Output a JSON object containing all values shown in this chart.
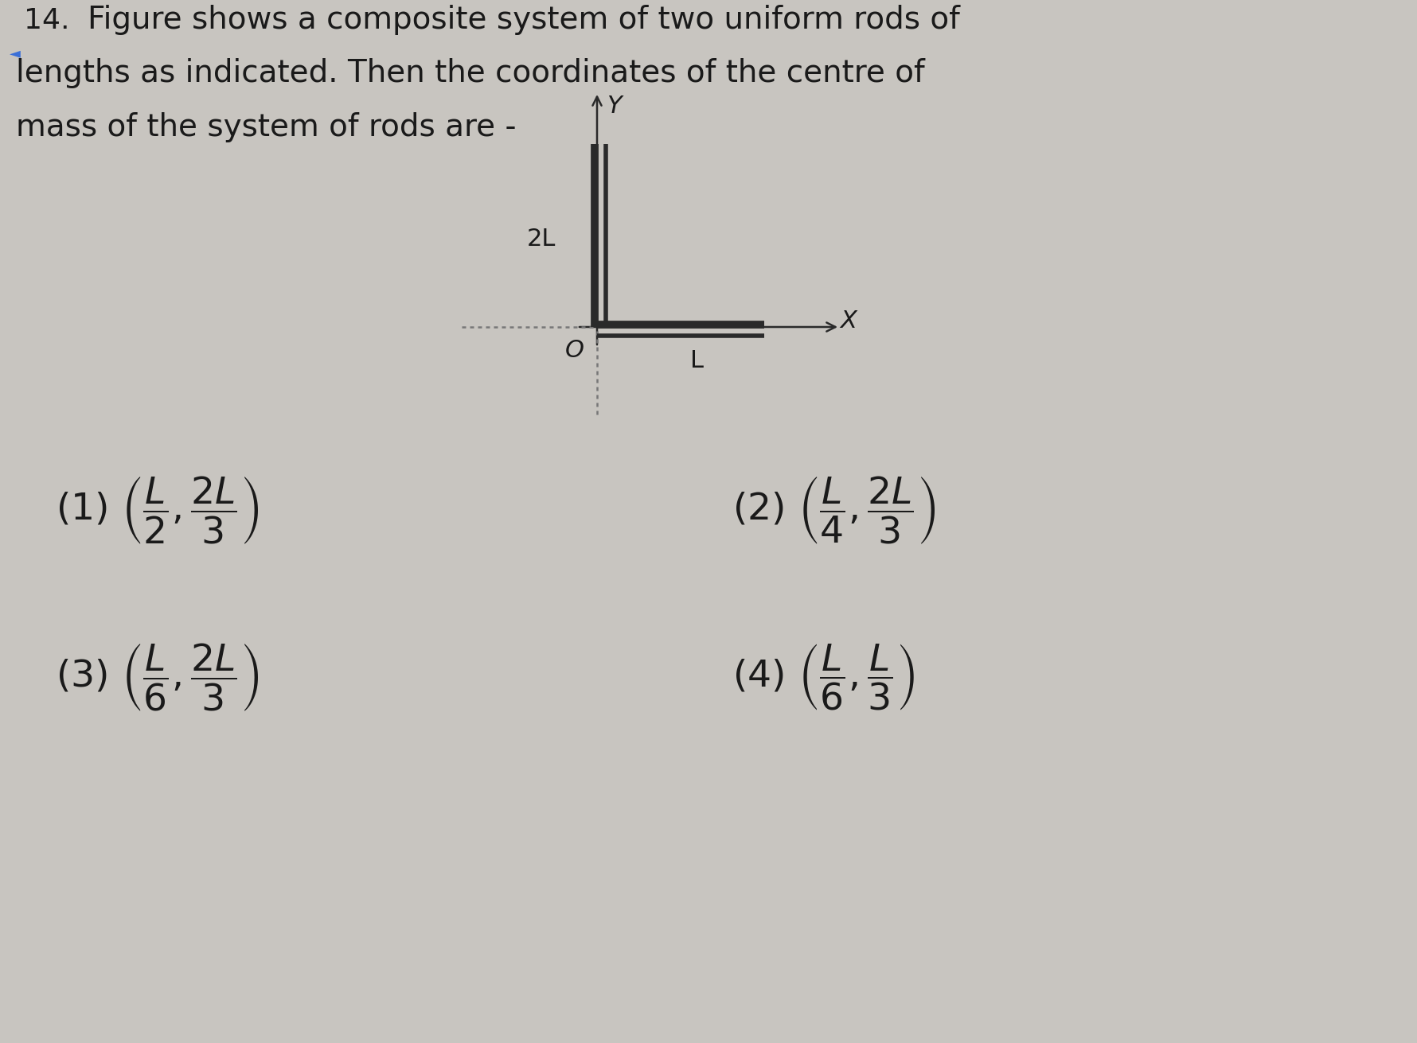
{
  "bg_color": "#c8c5c0",
  "text_color": "#1a1a1a",
  "line1": "Figure shows a composite system of two uniform rods of",
  "line2": "lengths as indicated. Then the coordinates of the centre of",
  "line3": "mass of the system of rods are -",
  "diagram": {
    "rod_color": "#2a2a2a",
    "axis_color": "#2a2a2a",
    "dotted_color": "#777777",
    "origin_label": "O",
    "x_label": "X",
    "y_label": "Y",
    "rod_v_label": "2L",
    "rod_h_label": "L"
  }
}
